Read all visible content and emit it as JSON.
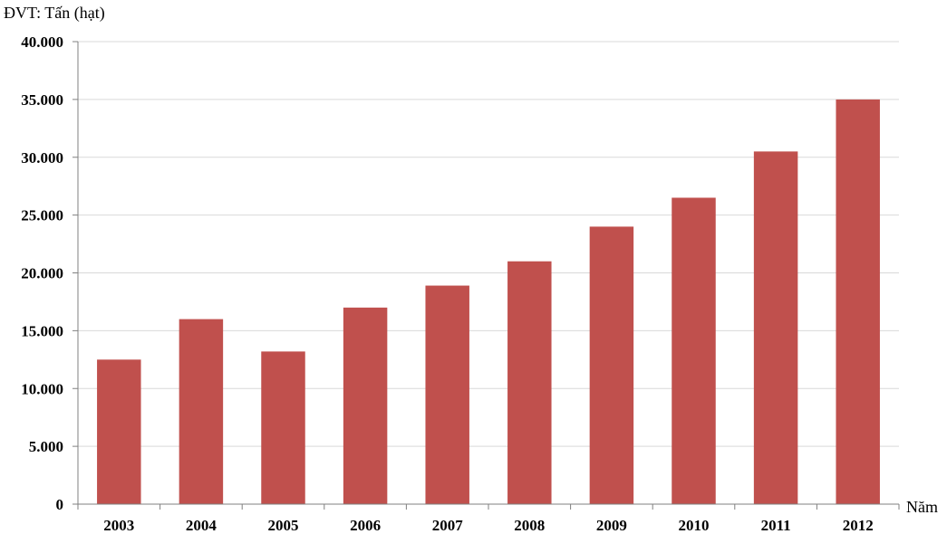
{
  "chart_data": {
    "type": "bar",
    "unit_label": "ĐVT: Tấn (hạt)",
    "xlabel": "Năm",
    "ylabel": "",
    "categories": [
      "2003",
      "2004",
      "2005",
      "2006",
      "2007",
      "2008",
      "2009",
      "2010",
      "2011",
      "2012"
    ],
    "values": [
      12500,
      16000,
      13200,
      17000,
      18900,
      21000,
      24000,
      26500,
      30500,
      35000
    ],
    "ylim": [
      0,
      40000
    ],
    "yticks": [
      0,
      5000,
      10000,
      15000,
      20000,
      25000,
      30000,
      35000,
      40000
    ],
    "ytick_labels": [
      "0",
      "5.000",
      "10.000",
      "15.000",
      "20.000",
      "25.000",
      "30.000",
      "35.000",
      "40.000"
    ],
    "grid": true,
    "legend": "none",
    "colors": {
      "bar": "#C0504D",
      "grid": "#D9D9D9",
      "axis": "#808080"
    }
  }
}
